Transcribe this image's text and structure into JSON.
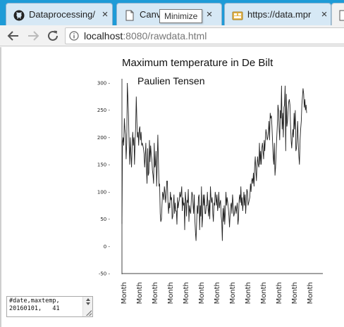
{
  "browser": {
    "tabs": [
      {
        "title": "Dataprocessing/",
        "icon": "github-icon",
        "close": "×",
        "active": false
      },
      {
        "title": "Canva",
        "icon": "page-icon",
        "close": "×",
        "active": false
      },
      {
        "title": "https://data.mpr",
        "icon": "dataset-icon",
        "close": "×",
        "active": false
      },
      {
        "title": "",
        "icon": "page-icon",
        "close": "",
        "active": true
      }
    ],
    "tooltip": "Minimize",
    "address": {
      "host": "localhost",
      "rest": ":8080/rawdata.html"
    }
  },
  "page": {
    "title": "Maximum temperature in De Bilt",
    "subtitle": "Paulien Tensen",
    "textarea": {
      "line1": "#date,maxtemp,",
      "line2": "20160101,   41"
    }
  },
  "chart_data": {
    "type": "line",
    "title": "Maximum temperature in De Bilt",
    "subtitle": "Paulien Tensen",
    "xlabel": "",
    "ylabel": "",
    "ylim": [
      -50,
      300
    ],
    "yticks": [
      "300 -",
      "250 -",
      "200 -",
      "150 -",
      "100 -",
      "50 -",
      "0 -",
      "-50 -"
    ],
    "ytick_values": [
      300,
      250,
      200,
      150,
      100,
      50,
      0,
      -50
    ],
    "xtick_labels": [
      "Month",
      "Month",
      "Month",
      "Month",
      "Month",
      "Month",
      "Month",
      "Month",
      "Month",
      "Month",
      "Month",
      "Month",
      "Month"
    ],
    "grid": false,
    "series": [
      {
        "values": [
          41,
          190,
          200,
          185,
          235,
          215,
          205,
          160,
          190,
          300,
          270,
          240,
          185,
          150,
          200,
          170,
          145,
          180,
          210,
          185,
          200,
          150,
          195,
          220,
          275,
          230,
          200,
          210,
          185,
          215,
          220,
          195,
          210,
          185,
          190,
          185,
          180,
          170,
          145,
          165,
          190,
          140,
          115,
          180,
          130,
          135,
          195,
          155,
          185,
          170,
          160,
          140,
          130,
          115,
          190,
          145,
          150,
          175,
          110,
          150,
          205,
          160,
          110,
          115,
          60,
          45,
          50,
          75,
          100,
          95,
          85,
          110,
          100,
          80,
          95,
          120,
          120,
          80,
          60,
          80,
          70,
          100,
          85,
          90,
          50,
          55,
          75,
          95,
          60,
          80,
          65,
          65,
          40,
          90,
          70,
          80,
          85,
          100,
          90,
          95,
          110,
          65,
          90,
          75,
          80,
          30,
          100,
          85,
          55,
          85,
          80,
          105,
          45,
          75,
          65,
          60,
          85,
          100,
          95,
          75,
          60,
          95,
          50,
          25,
          10,
          45,
          75,
          60,
          90,
          95,
          30,
          75,
          55,
          110,
          35,
          55,
          95,
          75,
          95,
          60,
          60,
          75,
          75,
          100,
          70,
          55,
          85,
          50,
          110,
          90,
          80,
          90,
          60,
          45,
          80,
          75,
          100,
          90,
          75,
          95,
          65,
          75,
          100,
          70,
          80,
          85,
          55,
          45,
          10,
          70,
          45,
          75,
          40,
          65,
          100,
          75,
          90,
          80,
          70,
          55,
          35,
          60,
          75,
          80,
          60,
          95,
          80,
          55,
          60,
          70,
          75,
          60,
          70,
          80,
          40,
          50,
          85,
          95,
          80,
          110,
          75,
          90,
          65,
          80,
          100,
          75,
          95,
          60,
          85,
          105,
          100,
          75,
          80,
          85,
          90,
          115,
          100,
          120,
          125,
          115,
          135,
          110,
          145,
          165,
          140,
          120,
          150,
          165,
          150,
          145,
          190,
          150,
          175,
          150,
          180,
          190,
          175,
          160,
          195,
          175,
          200,
          215,
          205,
          195,
          200,
          210,
          230,
          195,
          245,
          235,
          240,
          220,
          190,
          165,
          150,
          190,
          130,
          145,
          175,
          200,
          225,
          260,
          250,
          215,
          195,
          250,
          235,
          295,
          215,
          245,
          200,
          255,
          260,
          295,
          175,
          280,
          220,
          230,
          250,
          265,
          270,
          260,
          225,
          195,
          180,
          200,
          215,
          200,
          245,
          215,
          250,
          175,
          180,
          200,
          230,
          190,
          165,
          150,
          195,
          215,
          230,
          260,
          275,
          290,
          280,
          255,
          270,
          250,
          260,
          245
        ]
      }
    ]
  }
}
